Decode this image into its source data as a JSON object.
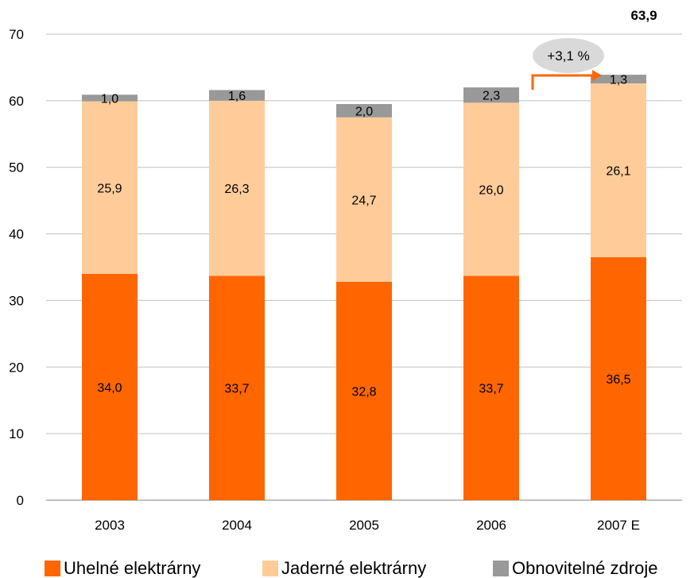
{
  "chart_data": {
    "type": "bar",
    "stacked": true,
    "categories": [
      "2003",
      "2004",
      "2005",
      "2006",
      "2007 E"
    ],
    "series": [
      {
        "name": "Uhelné elektrárny",
        "color": "#ff6600",
        "values": [
          34.0,
          33.7,
          32.8,
          33.7,
          36.5
        ],
        "labels": [
          "34,0",
          "33,7",
          "32,8",
          "33,7",
          "36,5"
        ]
      },
      {
        "name": "Jaderné elektrárny",
        "color": "#ffcc99",
        "values": [
          25.9,
          26.3,
          24.7,
          26.0,
          26.1
        ],
        "labels": [
          "25,9",
          "26,3",
          "24,7",
          "26,0",
          "26,1"
        ]
      },
      {
        "name": "Obnovitelné zdroje",
        "color": "#999999",
        "values": [
          1.0,
          1.6,
          2.0,
          2.3,
          1.3
        ],
        "labels": [
          "1,0",
          "1,6",
          "2,0",
          "2,3",
          "1,3"
        ]
      }
    ],
    "ylim": [
      0,
      70
    ],
    "yticks": [
      0,
      10,
      20,
      30,
      40,
      50,
      60,
      70
    ],
    "grid": true,
    "legend_position": "bottom",
    "annotations": {
      "total_label": "63,9",
      "growth_label": "+3,1 %",
      "arrow": "from 2006 to 2007 E"
    }
  }
}
